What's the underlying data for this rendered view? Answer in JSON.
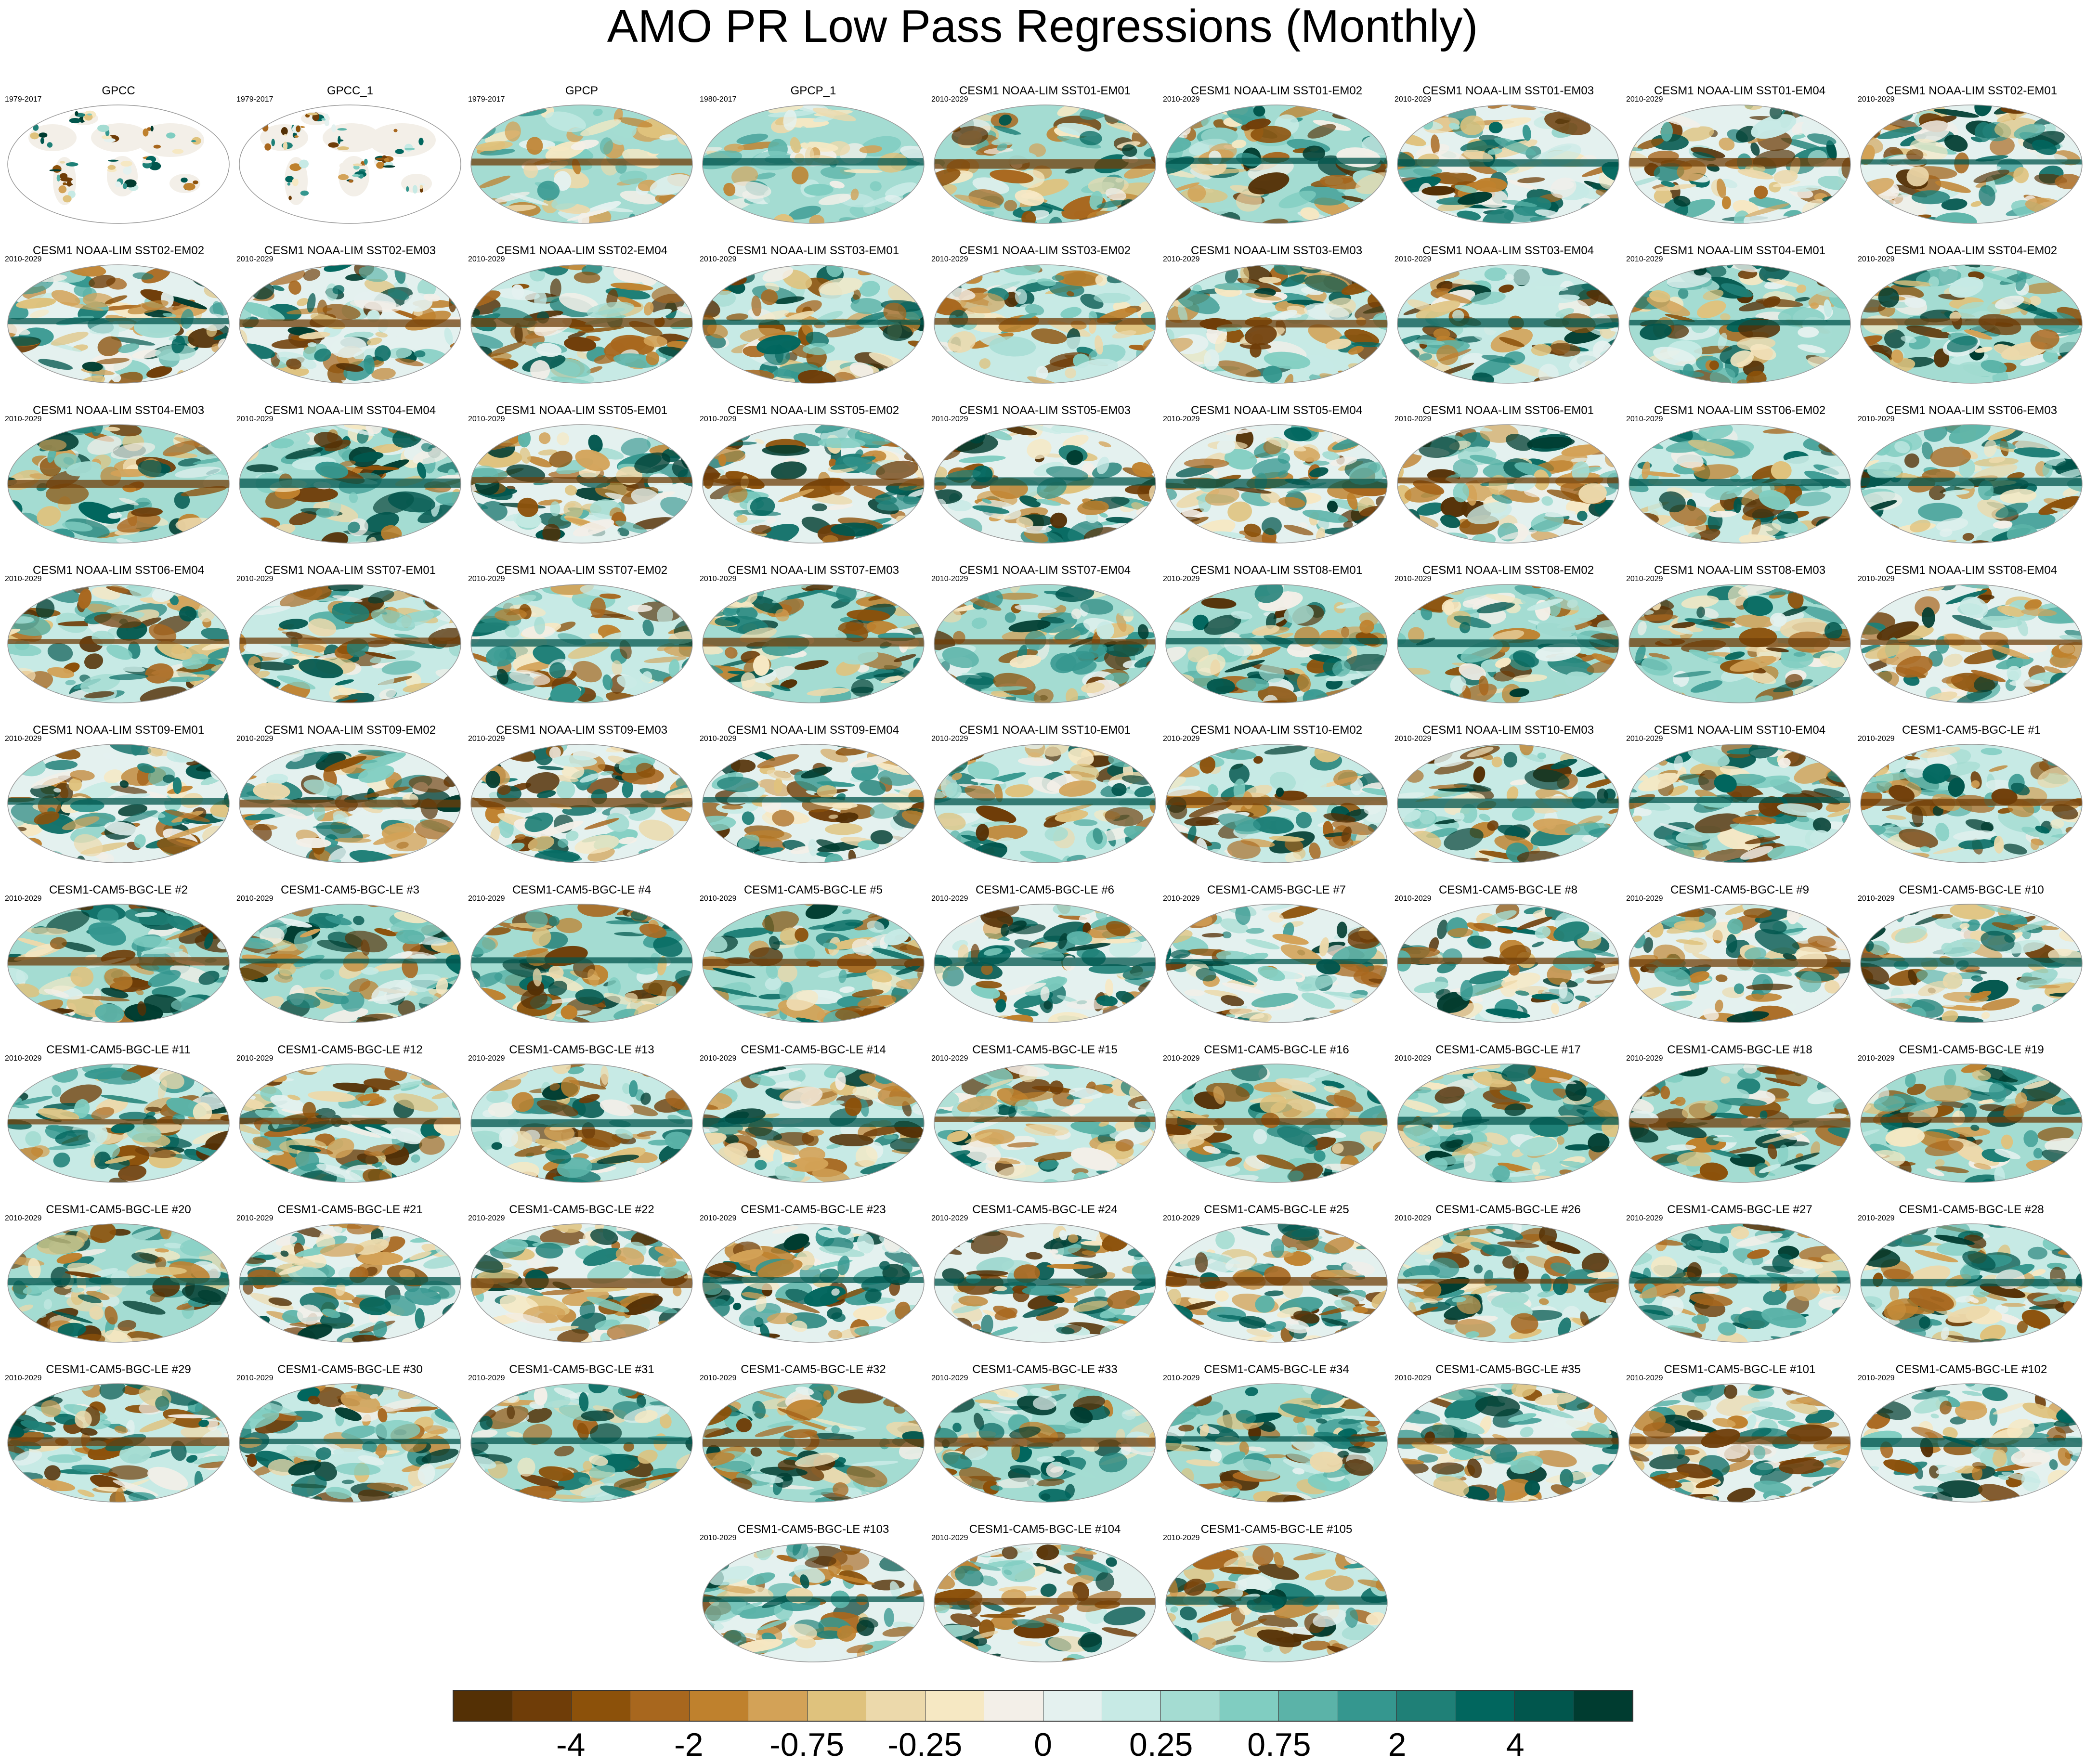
{
  "title": "AMO PR Low Pass Regressions (Monthly)",
  "panels": [
    {
      "name": "GPCC",
      "period": "1979-2017",
      "kind": "land"
    },
    {
      "name": "GPCC_1",
      "period": "1979-2017",
      "kind": "land"
    },
    {
      "name": "GPCP",
      "period": "1979-2017",
      "kind": "obs"
    },
    {
      "name": "GPCP_1",
      "period": "1980-2017",
      "kind": "obs"
    },
    {
      "name": "CESM1 NOAA-LIM SST01-EM01",
      "period": "2010-2029",
      "kind": "model"
    },
    {
      "name": "CESM1 NOAA-LIM SST01-EM02",
      "period": "2010-2029",
      "kind": "model"
    },
    {
      "name": "CESM1 NOAA-LIM SST01-EM03",
      "period": "2010-2029",
      "kind": "model"
    },
    {
      "name": "CESM1 NOAA-LIM SST01-EM04",
      "period": "2010-2029",
      "kind": "model"
    },
    {
      "name": "CESM1 NOAA-LIM SST02-EM01",
      "period": "2010-2029",
      "kind": "model"
    },
    {
      "name": "CESM1 NOAA-LIM SST02-EM02",
      "period": "2010-2029",
      "kind": "model"
    },
    {
      "name": "CESM1 NOAA-LIM SST02-EM03",
      "period": "2010-2029",
      "kind": "model"
    },
    {
      "name": "CESM1 NOAA-LIM SST02-EM04",
      "period": "2010-2029",
      "kind": "model"
    },
    {
      "name": "CESM1 NOAA-LIM SST03-EM01",
      "period": "2010-2029",
      "kind": "model"
    },
    {
      "name": "CESM1 NOAA-LIM SST03-EM02",
      "period": "2010-2029",
      "kind": "model"
    },
    {
      "name": "CESM1 NOAA-LIM SST03-EM03",
      "period": "2010-2029",
      "kind": "model"
    },
    {
      "name": "CESM1 NOAA-LIM SST03-EM04",
      "period": "2010-2029",
      "kind": "model"
    },
    {
      "name": "CESM1 NOAA-LIM SST04-EM01",
      "period": "2010-2029",
      "kind": "model"
    },
    {
      "name": "CESM1 NOAA-LIM SST04-EM02",
      "period": "2010-2029",
      "kind": "model"
    },
    {
      "name": "CESM1 NOAA-LIM SST04-EM03",
      "period": "2010-2029",
      "kind": "model"
    },
    {
      "name": "CESM1 NOAA-LIM SST04-EM04",
      "period": "2010-2029",
      "kind": "model"
    },
    {
      "name": "CESM1 NOAA-LIM SST05-EM01",
      "period": "2010-2029",
      "kind": "model"
    },
    {
      "name": "CESM1 NOAA-LIM SST05-EM02",
      "period": "2010-2029",
      "kind": "model"
    },
    {
      "name": "CESM1 NOAA-LIM SST05-EM03",
      "period": "2010-2029",
      "kind": "model"
    },
    {
      "name": "CESM1 NOAA-LIM SST05-EM04",
      "period": "2010-2029",
      "kind": "model"
    },
    {
      "name": "CESM1 NOAA-LIM SST06-EM01",
      "period": "2010-2029",
      "kind": "model"
    },
    {
      "name": "CESM1 NOAA-LIM SST06-EM02",
      "period": "2010-2029",
      "kind": "model"
    },
    {
      "name": "CESM1 NOAA-LIM SST06-EM03",
      "period": "2010-2029",
      "kind": "model"
    },
    {
      "name": "CESM1 NOAA-LIM SST06-EM04",
      "period": "2010-2029",
      "kind": "model"
    },
    {
      "name": "CESM1 NOAA-LIM SST07-EM01",
      "period": "2010-2029",
      "kind": "model"
    },
    {
      "name": "CESM1 NOAA-LIM SST07-EM02",
      "period": "2010-2029",
      "kind": "model"
    },
    {
      "name": "CESM1 NOAA-LIM SST07-EM03",
      "period": "2010-2029",
      "kind": "model"
    },
    {
      "name": "CESM1 NOAA-LIM SST07-EM04",
      "period": "2010-2029",
      "kind": "model"
    },
    {
      "name": "CESM1 NOAA-LIM SST08-EM01",
      "period": "2010-2029",
      "kind": "model"
    },
    {
      "name": "CESM1 NOAA-LIM SST08-EM02",
      "period": "2010-2029",
      "kind": "model"
    },
    {
      "name": "CESM1 NOAA-LIM SST08-EM03",
      "period": "2010-2029",
      "kind": "model"
    },
    {
      "name": "CESM1 NOAA-LIM SST08-EM04",
      "period": "2010-2029",
      "kind": "model"
    },
    {
      "name": "CESM1 NOAA-LIM SST09-EM01",
      "period": "2010-2029",
      "kind": "model"
    },
    {
      "name": "CESM1 NOAA-LIM SST09-EM02",
      "period": "2010-2029",
      "kind": "model"
    },
    {
      "name": "CESM1 NOAA-LIM SST09-EM03",
      "period": "2010-2029",
      "kind": "model"
    },
    {
      "name": "CESM1 NOAA-LIM SST09-EM04",
      "period": "2010-2029",
      "kind": "model"
    },
    {
      "name": "CESM1 NOAA-LIM SST10-EM01",
      "period": "2010-2029",
      "kind": "model"
    },
    {
      "name": "CESM1 NOAA-LIM SST10-EM02",
      "period": "2010-2029",
      "kind": "model"
    },
    {
      "name": "CESM1 NOAA-LIM SST10-EM03",
      "period": "2010-2029",
      "kind": "model"
    },
    {
      "name": "CESM1 NOAA-LIM SST10-EM04",
      "period": "2010-2029",
      "kind": "model"
    },
    {
      "name": "CESM1-CAM5-BGC-LE #1",
      "period": "2010-2029",
      "kind": "model"
    },
    {
      "name": "CESM1-CAM5-BGC-LE #2",
      "period": "2010-2029",
      "kind": "model"
    },
    {
      "name": "CESM1-CAM5-BGC-LE #3",
      "period": "2010-2029",
      "kind": "model"
    },
    {
      "name": "CESM1-CAM5-BGC-LE #4",
      "period": "2010-2029",
      "kind": "model"
    },
    {
      "name": "CESM1-CAM5-BGC-LE #5",
      "period": "2010-2029",
      "kind": "model"
    },
    {
      "name": "CESM1-CAM5-BGC-LE #6",
      "period": "2010-2029",
      "kind": "model"
    },
    {
      "name": "CESM1-CAM5-BGC-LE #7",
      "period": "2010-2029",
      "kind": "model"
    },
    {
      "name": "CESM1-CAM5-BGC-LE #8",
      "period": "2010-2029",
      "kind": "model"
    },
    {
      "name": "CESM1-CAM5-BGC-LE #9",
      "period": "2010-2029",
      "kind": "model"
    },
    {
      "name": "CESM1-CAM5-BGC-LE #10",
      "period": "2010-2029",
      "kind": "model"
    },
    {
      "name": "CESM1-CAM5-BGC-LE #11",
      "period": "2010-2029",
      "kind": "model"
    },
    {
      "name": "CESM1-CAM5-BGC-LE #12",
      "period": "2010-2029",
      "kind": "model"
    },
    {
      "name": "CESM1-CAM5-BGC-LE #13",
      "period": "2010-2029",
      "kind": "model"
    },
    {
      "name": "CESM1-CAM5-BGC-LE #14",
      "period": "2010-2029",
      "kind": "model"
    },
    {
      "name": "CESM1-CAM5-BGC-LE #15",
      "period": "2010-2029",
      "kind": "model"
    },
    {
      "name": "CESM1-CAM5-BGC-LE #16",
      "period": "2010-2029",
      "kind": "model"
    },
    {
      "name": "CESM1-CAM5-BGC-LE #17",
      "period": "2010-2029",
      "kind": "model"
    },
    {
      "name": "CESM1-CAM5-BGC-LE #18",
      "period": "2010-2029",
      "kind": "model"
    },
    {
      "name": "CESM1-CAM5-BGC-LE #19",
      "period": "2010-2029",
      "kind": "model"
    },
    {
      "name": "CESM1-CAM5-BGC-LE #20",
      "period": "2010-2029",
      "kind": "model"
    },
    {
      "name": "CESM1-CAM5-BGC-LE #21",
      "period": "2010-2029",
      "kind": "model"
    },
    {
      "name": "CESM1-CAM5-BGC-LE #22",
      "period": "2010-2029",
      "kind": "model"
    },
    {
      "name": "CESM1-CAM5-BGC-LE #23",
      "period": "2010-2029",
      "kind": "model"
    },
    {
      "name": "CESM1-CAM5-BGC-LE #24",
      "period": "2010-2029",
      "kind": "model"
    },
    {
      "name": "CESM1-CAM5-BGC-LE #25",
      "period": "2010-2029",
      "kind": "model"
    },
    {
      "name": "CESM1-CAM5-BGC-LE #26",
      "period": "2010-2029",
      "kind": "model"
    },
    {
      "name": "CESM1-CAM5-BGC-LE #27",
      "period": "2010-2029",
      "kind": "model"
    },
    {
      "name": "CESM1-CAM5-BGC-LE #28",
      "period": "2010-2029",
      "kind": "model"
    },
    {
      "name": "CESM1-CAM5-BGC-LE #29",
      "period": "2010-2029",
      "kind": "model"
    },
    {
      "name": "CESM1-CAM5-BGC-LE #30",
      "period": "2010-2029",
      "kind": "model"
    },
    {
      "name": "CESM1-CAM5-BGC-LE #31",
      "period": "2010-2029",
      "kind": "model"
    },
    {
      "name": "CESM1-CAM5-BGC-LE #32",
      "period": "2010-2029",
      "kind": "model"
    },
    {
      "name": "CESM1-CAM5-BGC-LE #33",
      "period": "2010-2029",
      "kind": "model"
    },
    {
      "name": "CESM1-CAM5-BGC-LE #34",
      "period": "2010-2029",
      "kind": "model"
    },
    {
      "name": "CESM1-CAM5-BGC-LE #35",
      "period": "2010-2029",
      "kind": "model"
    },
    {
      "name": "CESM1-CAM5-BGC-LE #101",
      "period": "2010-2029",
      "kind": "model"
    },
    {
      "name": "CESM1-CAM5-BGC-LE #102",
      "period": "2010-2029",
      "kind": "model"
    },
    {
      "name": "CESM1-CAM5-BGC-LE #103",
      "period": "2010-2029",
      "kind": "model"
    },
    {
      "name": "CESM1-CAM5-BGC-LE #104",
      "period": "2010-2029",
      "kind": "model"
    },
    {
      "name": "CESM1-CAM5-BGC-LE #105",
      "period": "2010-2029",
      "kind": "model"
    }
  ],
  "colorbar": {
    "colors": [
      "#543005",
      "#6f3d08",
      "#8c510a",
      "#a8671e",
      "#bf812d",
      "#d3a257",
      "#dfc27d",
      "#ecd9ab",
      "#f6e8c3",
      "#f3efe8",
      "#e4f1ef",
      "#c7eae5",
      "#a4dcd2",
      "#80cdc1",
      "#5bb3a8",
      "#35978f",
      "#1f8077",
      "#01665e",
      "#01564d",
      "#003c30"
    ],
    "tick_labels": [
      "-4",
      "-2",
      "-0.75",
      "-0.25",
      "0",
      "0.25",
      "0.75",
      "2",
      "4"
    ]
  }
}
